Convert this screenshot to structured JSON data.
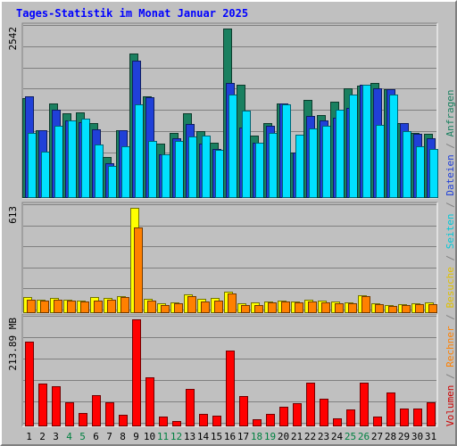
{
  "title": "Tages-Statistik im Monat Januar 2025",
  "right_legend": [
    {
      "text": "Volumen",
      "color": "#cc0000"
    },
    {
      "text": " / ",
      "color": "#808080"
    },
    {
      "text": "Rechner",
      "color": "#ff8000"
    },
    {
      "text": " / ",
      "color": "#808080"
    },
    {
      "text": "Besuche",
      "color": "#e0c000"
    },
    {
      "text": " / ",
      "color": "#808080"
    },
    {
      "text": "Seiten",
      "color": "#00c8d8"
    },
    {
      "text": " / ",
      "color": "#808080"
    },
    {
      "text": "Dateien",
      "color": "#2040d8"
    },
    {
      "text": " / ",
      "color": "#808080"
    },
    {
      "text": "Anfragen",
      "color": "#1a8060"
    }
  ],
  "chart_data": [
    {
      "type": "bar",
      "panel": "hits",
      "ymax_label": "2542",
      "ymax": 2542,
      "categories": [
        "1",
        "2",
        "3",
        "4",
        "5",
        "6",
        "7",
        "8",
        "9",
        "10",
        "11",
        "12",
        "13",
        "14",
        "15",
        "16",
        "17",
        "18",
        "19",
        "20",
        "21",
        "22",
        "23",
        "24",
        "25",
        "26",
        "27",
        "28",
        "29",
        "30",
        "31"
      ],
      "series": [
        {
          "name": "Anfragen",
          "color": "#1a8060",
          "values": [
            1500,
            1020,
            1420,
            1270,
            1290,
            1120,
            620,
            1020,
            2170,
            1530,
            820,
            970,
            1270,
            1010,
            830,
            2542,
            1700,
            930,
            1130,
            1420,
            680,
            1470,
            1240,
            1450,
            1650,
            1680,
            1720,
            1630,
            1130,
            980,
            960
          ]
        },
        {
          "name": "Dateien",
          "color": "#2040d8",
          "values": [
            1520,
            1020,
            1320,
            1170,
            1140,
            1030,
            520,
            1020,
            2060,
            1510,
            660,
            900,
            1110,
            820,
            730,
            1730,
            1060,
            830,
            1080,
            1420,
            680,
            1230,
            1160,
            1200,
            1350,
            1700,
            1640,
            1630,
            1130,
            960,
            890
          ]
        },
        {
          "name": "Seiten",
          "color": "#00e0ff",
          "values": [
            970,
            700,
            1090,
            1170,
            1190,
            800,
            480,
            780,
            1400,
            860,
            660,
            850,
            920,
            930,
            720,
            1550,
            1310,
            830,
            970,
            1400,
            950,
            1040,
            1090,
            1330,
            1550,
            1700,
            1100,
            1550,
            1000,
            780,
            730
          ]
        }
      ]
    },
    {
      "type": "bar",
      "panel": "visits",
      "ymax_label": "613",
      "ymax": 613,
      "categories": [
        "1",
        "2",
        "3",
        "4",
        "5",
        "6",
        "7",
        "8",
        "9",
        "10",
        "11",
        "12",
        "13",
        "14",
        "15",
        "16",
        "17",
        "18",
        "19",
        "20",
        "21",
        "22",
        "23",
        "24",
        "25",
        "26",
        "27",
        "28",
        "29",
        "30",
        "31"
      ],
      "series": [
        {
          "name": "Besuche",
          "color": "#ffff00",
          "values": [
            95,
            80,
            90,
            80,
            75,
            95,
            90,
            100,
            613,
            85,
            55,
            60,
            110,
            85,
            90,
            125,
            55,
            60,
            70,
            75,
            70,
            80,
            75,
            65,
            60,
            105,
            55,
            45,
            50,
            55,
            60
          ]
        },
        {
          "name": "Rechner",
          "color": "#ff8000",
          "values": [
            80,
            75,
            80,
            75,
            65,
            75,
            80,
            95,
            500,
            75,
            45,
            55,
            100,
            70,
            75,
            115,
            45,
            45,
            60,
            65,
            60,
            70,
            60,
            55,
            55,
            100,
            50,
            40,
            45,
            50,
            50
          ]
        }
      ]
    },
    {
      "type": "bar",
      "panel": "volume",
      "ymax_label": "213.89 MB",
      "ymax": 213.89,
      "unit": "MB",
      "categories": [
        "1",
        "2",
        "3",
        "4",
        "5",
        "6",
        "7",
        "8",
        "9",
        "10",
        "11",
        "12",
        "13",
        "14",
        "15",
        "16",
        "17",
        "18",
        "19",
        "20",
        "21",
        "22",
        "23",
        "24",
        "25",
        "26",
        "27",
        "28",
        "29",
        "30",
        "31"
      ],
      "series": [
        {
          "name": "Volumen",
          "color": "#ff0000",
          "values": [
            170,
            85,
            80,
            48,
            27,
            62,
            48,
            23,
            213.89,
            98,
            20,
            10,
            75,
            25,
            21,
            151,
            60,
            15,
            25,
            40,
            47,
            87,
            56,
            16,
            33,
            88,
            19,
            68,
            35,
            35,
            48
          ]
        }
      ]
    }
  ],
  "weekend_days": [
    "4",
    "5",
    "11",
    "12",
    "18",
    "19",
    "25",
    "26"
  ],
  "colors": {
    "weekday_tick": "#000000",
    "weekend_tick": "#008040",
    "panel_bg": "#c0c0c0",
    "grid": "#808080"
  }
}
